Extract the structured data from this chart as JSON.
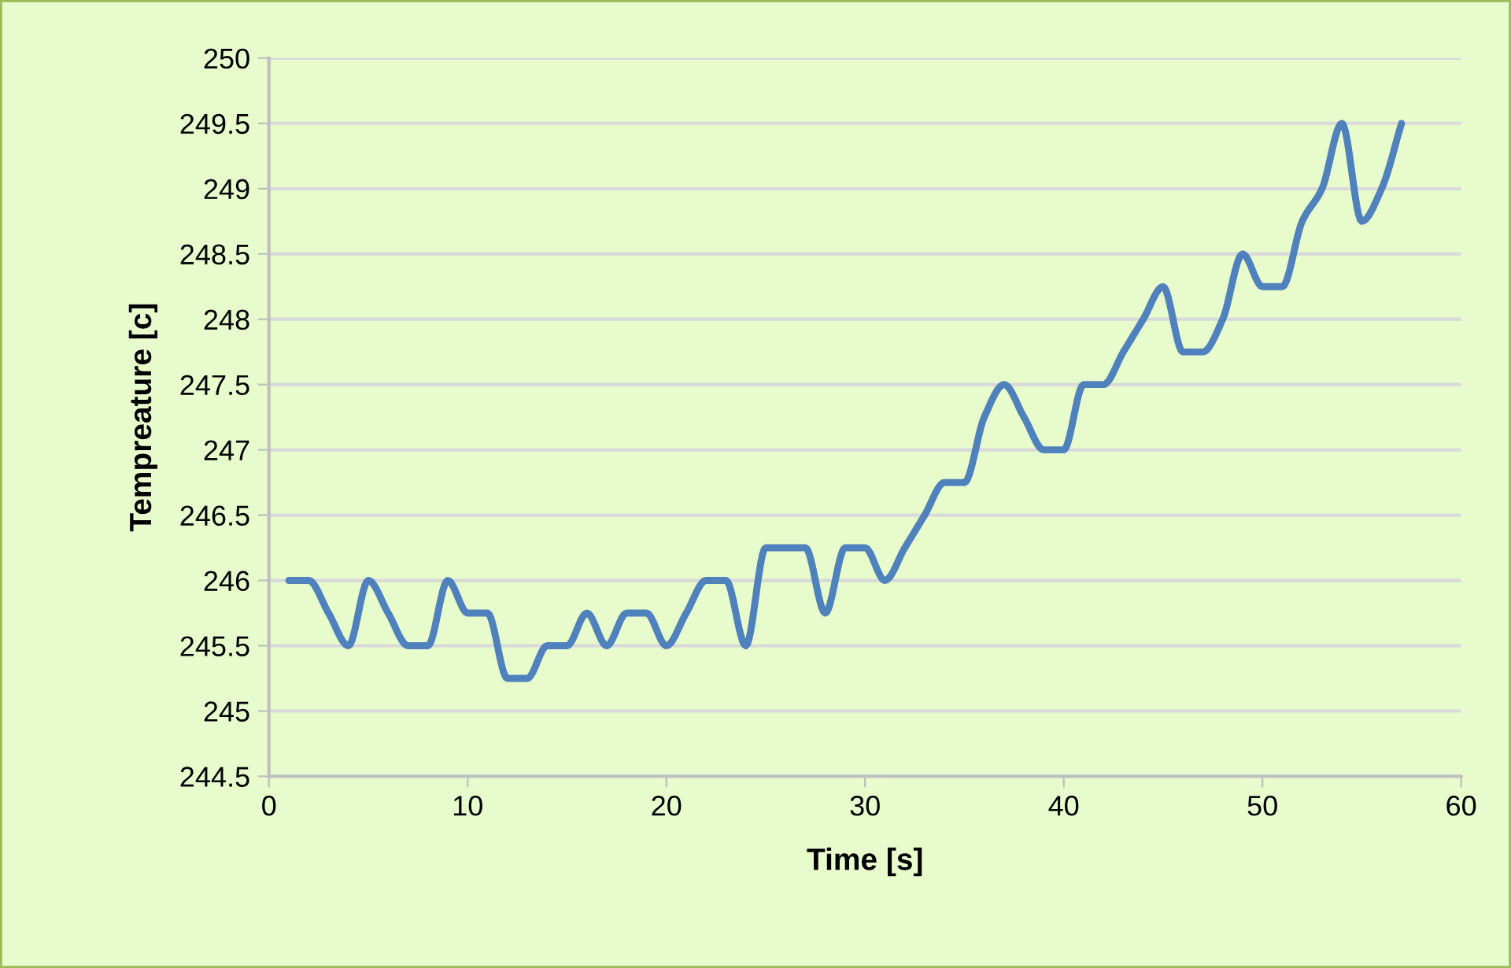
{
  "chart_data": {
    "type": "line",
    "xlabel": "Time [s]",
    "ylabel": "Tempreature [c]",
    "x": [
      1,
      2,
      3,
      4,
      5,
      6,
      7,
      8,
      9,
      10,
      11,
      12,
      13,
      14,
      15,
      16,
      17,
      18,
      19,
      20,
      21,
      22,
      23,
      24,
      25,
      26,
      27,
      28,
      29,
      30,
      31,
      32,
      33,
      34,
      35,
      36,
      37,
      38,
      39,
      40,
      41,
      42,
      43,
      44,
      45,
      46,
      47,
      48,
      49,
      50,
      51,
      52,
      53,
      54,
      55,
      56,
      57
    ],
    "series": [
      {
        "color": "#4f81bd",
        "values": [
          246,
          246,
          245.75,
          245.5,
          246,
          245.75,
          245.5,
          245.5,
          246,
          245.75,
          245.75,
          245.25,
          245.25,
          245.5,
          245.5,
          245.75,
          245.5,
          245.75,
          245.75,
          245.5,
          245.75,
          246,
          246,
          245.5,
          246.25,
          246.25,
          246.25,
          245.75,
          246.25,
          246.25,
          246,
          246.25,
          246.5,
          246.75,
          246.75,
          247.25,
          247.5,
          247.25,
          247,
          247,
          247.5,
          247.5,
          247.75,
          248,
          248.25,
          247.75,
          247.75,
          248,
          248.5,
          248.25,
          248.25,
          248.75,
          249,
          249.5,
          248.75,
          249,
          249.5
        ]
      }
    ],
    "xlim": [
      0,
      60
    ],
    "xticks": [
      0,
      10,
      20,
      30,
      40,
      50,
      60
    ],
    "ylim": [
      244.5,
      250
    ],
    "yticks": [
      244.5,
      245,
      245.5,
      246,
      246.5,
      247,
      247.5,
      248,
      248.5,
      249,
      249.5,
      250
    ],
    "grid": "y",
    "marker": "none",
    "line_style": "solid"
  }
}
